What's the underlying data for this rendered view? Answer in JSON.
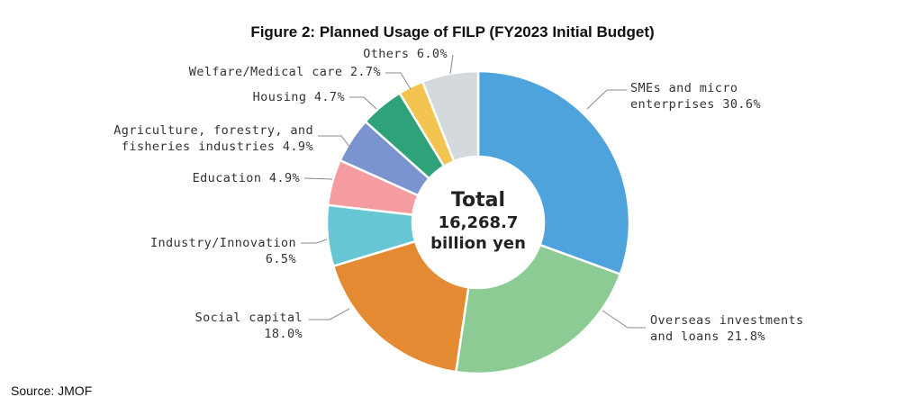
{
  "chart_data": {
    "type": "pie",
    "title": "Figure 2: Planned Usage of FILP (FY2023 Initial Budget)",
    "center_label": [
      "Total",
      "16,268.7",
      "billion yen"
    ],
    "slices": [
      {
        "category": "SMEs and micro enterprises",
        "value": 30.6,
        "label_lines": [
          "SMEs and micro",
          "enterprises 30.6%"
        ],
        "color": "#4fa3dc"
      },
      {
        "category": "Overseas investments and loans",
        "value": 21.8,
        "label_lines": [
          "Overseas investments",
          "and loans 21.8%"
        ],
        "color": "#8dcb94"
      },
      {
        "category": "Social capital",
        "value": 18.0,
        "label_lines": [
          "Social capital",
          "18.0%"
        ],
        "color": "#e48a33"
      },
      {
        "category": "Industry/Innovation",
        "value": 6.5,
        "label_lines": [
          "Industry/Innovation",
          "6.5%"
        ],
        "color": "#67c6d4"
      },
      {
        "category": "Education",
        "value": 4.9,
        "label_lines": [
          "Education 4.9%"
        ],
        "color": "#f49ca0"
      },
      {
        "category": "Agriculture, forestry, and fisheries industries",
        "value": 4.9,
        "label_lines": [
          "Agriculture, forestry, and",
          "fisheries industries 4.9%"
        ],
        "color": "#7b93cf"
      },
      {
        "category": "Housing",
        "value": 4.7,
        "label_lines": [
          "Housing 4.7%"
        ],
        "color": "#2ea279"
      },
      {
        "category": "Welfare/Medical care",
        "value": 2.7,
        "label_lines": [
          "Welfare/Medical care 2.7%"
        ],
        "color": "#f3c44f"
      },
      {
        "category": "Others",
        "value": 6.0,
        "label_lines": [
          "Others 6.0%"
        ],
        "color": "#d4d9dd"
      }
    ]
  },
  "source": "Source: JMOF"
}
